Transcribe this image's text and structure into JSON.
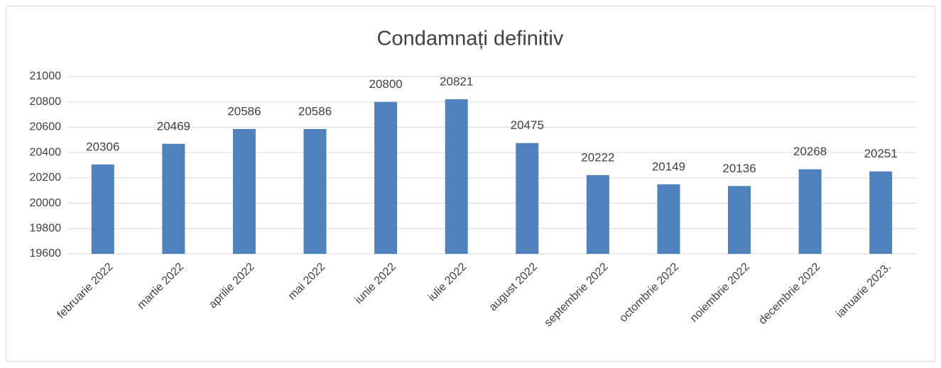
{
  "chart_data": {
    "type": "bar",
    "title": "Condamnați definitiv",
    "categories": [
      "februarie 2022",
      "martie 2022",
      "aprilie 2022",
      "mai 2022",
      "iunie 2022",
      "iulie 2022",
      "august 2022",
      "septembrie 2022",
      "octombrie 2022",
      "noiembrie 2022",
      "decembrie 2022",
      "ianuarie 2023."
    ],
    "values": [
      20306,
      20469,
      20586,
      20586,
      20800,
      20821,
      20475,
      20222,
      20149,
      20136,
      20268,
      20251
    ],
    "color": "#4f81bd",
    "ylim": [
      19600,
      21000
    ],
    "yticks": [
      19600,
      19800,
      20000,
      20200,
      20400,
      20600,
      20800,
      21000
    ],
    "grid": true
  }
}
